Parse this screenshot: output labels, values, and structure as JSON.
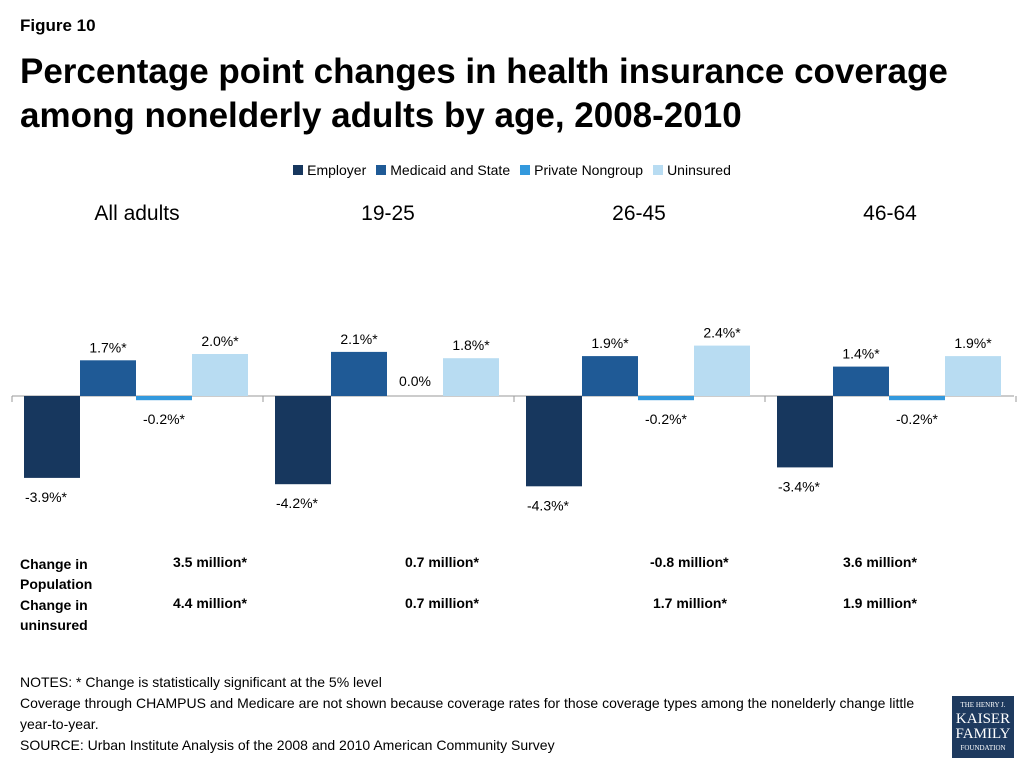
{
  "figure_label": "Figure 10",
  "title": "Percentage point changes in health insurance coverage among nonelderly adults by age, 2008-2010",
  "colors": {
    "Employer": "#17375e",
    "Medicaid and State": "#1f5a96",
    "Private Nongroup": "#3399dd",
    "Uninsured": "#b8dcf2"
  },
  "chart_data": {
    "type": "bar",
    "categories": [
      "All adults",
      "19-25",
      "26-45",
      "46-64"
    ],
    "series": [
      {
        "name": "Employer",
        "values": [
          -3.9,
          -4.2,
          -4.3,
          -3.4
        ],
        "labels": [
          "-3.9%*",
          "-4.2%*",
          "-4.3%*",
          "-3.4%*"
        ]
      },
      {
        "name": "Medicaid and State",
        "values": [
          1.7,
          2.1,
          1.9,
          1.4
        ],
        "labels": [
          "1.7%*",
          "2.1%*",
          "1.9%*",
          "1.4%*"
        ]
      },
      {
        "name": "Private Nongroup",
        "values": [
          -0.2,
          0.0,
          -0.2,
          -0.2
        ],
        "labels": [
          "-0.2%*",
          "0.0%",
          "-0.2%*",
          "-0.2%*"
        ]
      },
      {
        "name": "Uninsured",
        "values": [
          2.0,
          1.8,
          2.4,
          1.9
        ],
        "labels": [
          "2.0%*",
          "1.8%*",
          "2.4%*",
          "1.9%*"
        ]
      }
    ],
    "legend_position": "top-center",
    "grid": false
  },
  "stats": {
    "population_label": "Change in Population",
    "uninsured_label": "Change in uninsured",
    "population": [
      "3.5 million*",
      "0.7 million*",
      "-0.8 million*",
      "3.6  million*"
    ],
    "uninsured": [
      "4.4 million*",
      "0.7 million*",
      "1.7 million*",
      "1.9 million*"
    ]
  },
  "notes": {
    "line1": "NOTES: * Change is statistically significant at the 5% level",
    "line2": "Coverage through CHAMPUS and Medicare are not shown because coverage rates for those coverage types among the nonelderly change little year-to-year.",
    "line3": "SOURCE: Urban Institute Analysis of the 2008 and 2010 American Community Survey"
  },
  "logo": {
    "line1": "THE HENRY J.",
    "line2": "KAISER",
    "line3": "FAMILY",
    "line4": "FOUNDATION"
  }
}
